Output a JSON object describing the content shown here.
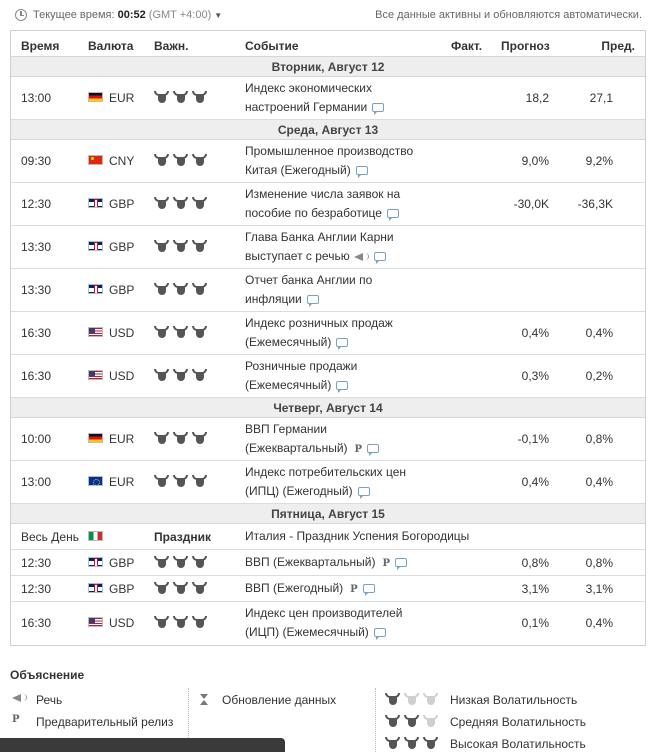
{
  "header": {
    "time_label": "Текущее время:",
    "time_value": "00:52",
    "timezone": "(GMT +4:00)",
    "auto_update_note": "Все данные активны и обновляются автоматически."
  },
  "columns": {
    "time": "Время",
    "currency": "Валюта",
    "importance": "Важн.",
    "event": "Событие",
    "actual": "Факт.",
    "forecast": "Прогноз",
    "previous": "Пред."
  },
  "days": [
    {
      "label": "Вторник, Август 12",
      "events": [
        {
          "time": "13:00",
          "flag": "de",
          "currency": "EUR",
          "importance": 3,
          "line1": "Индекс экономических",
          "line2": "настроений Германии",
          "icons": [
            "comment"
          ],
          "actual": "",
          "forecast": "18,2",
          "previous": "27,1"
        }
      ]
    },
    {
      "label": "Среда, Август 13",
      "events": [
        {
          "time": "09:30",
          "flag": "cn",
          "currency": "CNY",
          "importance": 3,
          "line1": "Промышленное производство",
          "line2": "Китая (Ежегодный)",
          "icons": [
            "comment"
          ],
          "actual": "",
          "forecast": "9,0%",
          "previous": "9,2%"
        },
        {
          "time": "12:30",
          "flag": "gb",
          "currency": "GBP",
          "importance": 3,
          "line1": "Изменение числа заявок на",
          "line2": "пособие по безработице",
          "icons": [
            "comment"
          ],
          "actual": "",
          "forecast": "-30,0K",
          "previous": "-36,3K"
        },
        {
          "time": "13:30",
          "flag": "gb",
          "currency": "GBP",
          "importance": 3,
          "line1": "Глава Банка Англии Карни",
          "line2": "выступает с речью",
          "icons": [
            "speech",
            "comment"
          ],
          "actual": "",
          "forecast": "",
          "previous": ""
        },
        {
          "time": "13:30",
          "flag": "gb",
          "currency": "GBP",
          "importance": 3,
          "line1": "Отчет банка Англии по",
          "line2": "инфляции",
          "icons": [
            "comment"
          ],
          "actual": "",
          "forecast": "",
          "previous": ""
        },
        {
          "time": "16:30",
          "flag": "us",
          "currency": "USD",
          "importance": 3,
          "line1": "Индекс розничных продаж",
          "line2": "(Ежемесячный)",
          "icons": [
            "comment"
          ],
          "actual": "",
          "forecast": "0,4%",
          "previous": "0,4%"
        },
        {
          "time": "16:30",
          "flag": "us",
          "currency": "USD",
          "importance": 3,
          "line1": "Розничные продажи",
          "line2": "(Ежемесячный)",
          "icons": [
            "comment"
          ],
          "actual": "",
          "forecast": "0,3%",
          "previous": "0,2%"
        }
      ]
    },
    {
      "label": "Четверг, Август 14",
      "events": [
        {
          "time": "10:00",
          "flag": "de",
          "currency": "EUR",
          "importance": 3,
          "line1": "ВВП Германии",
          "line2": "(Ежеквартальный)",
          "icons": [
            "p",
            "comment"
          ],
          "actual": "",
          "forecast": "-0,1%",
          "previous": "0,8%"
        },
        {
          "time": "13:00",
          "flag": "eu",
          "currency": "EUR",
          "importance": 3,
          "line1": "Индекс потребительских цен",
          "line2": "(ИПЦ) (Ежегодный)",
          "icons": [
            "comment"
          ],
          "actual": "",
          "forecast": "0,4%",
          "previous": "0,4%"
        }
      ]
    },
    {
      "label": "Пятница, Август 15",
      "events": [
        {
          "time": "Весь День",
          "flag": "it",
          "currency": "",
          "holiday": "Праздник",
          "line1": "Италия - Праздник Успения Богородицы",
          "line2": "",
          "icons": [],
          "actual": "",
          "forecast": "",
          "previous": ""
        },
        {
          "time": "12:30",
          "flag": "gb",
          "currency": "GBP",
          "importance": 3,
          "line1": "ВВП (Ежеквартальный)",
          "line2": "",
          "icons": [
            "p",
            "comment"
          ],
          "actual": "",
          "forecast": "0,8%",
          "previous": "0,8%"
        },
        {
          "time": "12:30",
          "flag": "gb",
          "currency": "GBP",
          "importance": 3,
          "line1": "ВВП (Ежегодный)",
          "line2": "",
          "icons": [
            "p",
            "comment"
          ],
          "actual": "",
          "forecast": "3,1%",
          "previous": "3,1%"
        },
        {
          "time": "16:30",
          "flag": "us",
          "currency": "USD",
          "importance": 3,
          "line1": "Индекс цен производителей",
          "line2": "(ИЦП) (Ежемесячный)",
          "icons": [
            "comment"
          ],
          "actual": "",
          "forecast": "0,1%",
          "previous": "0,4%"
        }
      ]
    }
  ],
  "legend": {
    "title": "Объяснение",
    "speech": "Речь",
    "preliminary": "Предварительный релиз",
    "data_update": "Обновление данных",
    "low": "Низкая Волатильность",
    "medium": "Средняя Волатильность",
    "high": "Высокая Волатильность"
  }
}
